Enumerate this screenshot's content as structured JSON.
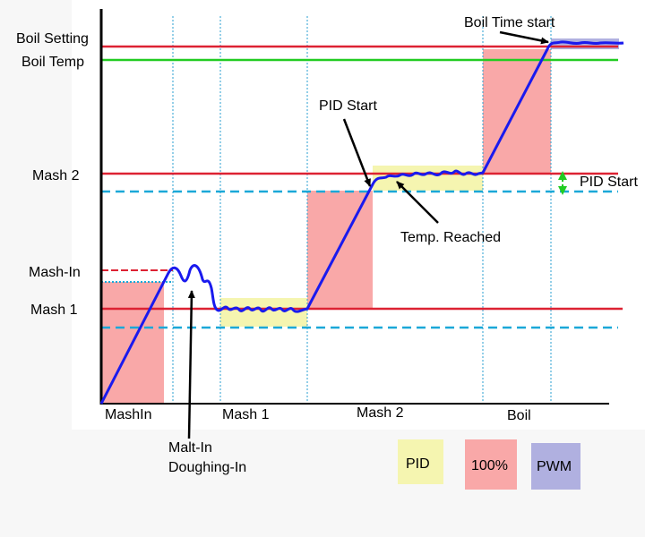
{
  "labels": {
    "boil_setting": "Boil Setting",
    "boil_temp": "Boil Temp",
    "mash2": "Mash 2",
    "mash_in": "Mash-In",
    "mash1": "Mash 1",
    "pid_start_top": "PID Start",
    "pid_start_right": "PID Start",
    "temp_reached": "Temp. Reached",
    "boil_time_start": "Boil Time start",
    "malt_in_line1": "Malt-In",
    "malt_in_line2": "Doughing-In"
  },
  "phases": [
    "MashIn",
    "Mash 1",
    "Mash 2",
    "Boil"
  ],
  "legend": [
    {
      "label": "PID",
      "color": "#f5f5b0"
    },
    {
      "label": "100%",
      "color": "#f9a8a8"
    },
    {
      "label": "PWM",
      "color": "#b0b0e0"
    }
  ],
  "colors": {
    "setpoint_line": "#dd2233",
    "boil_temp_line": "#22cc22",
    "dashed_line": "#1aa8d8",
    "curve": "#1a1aee",
    "arrow": "#000000",
    "green_arrow": "#22cc22"
  }
}
